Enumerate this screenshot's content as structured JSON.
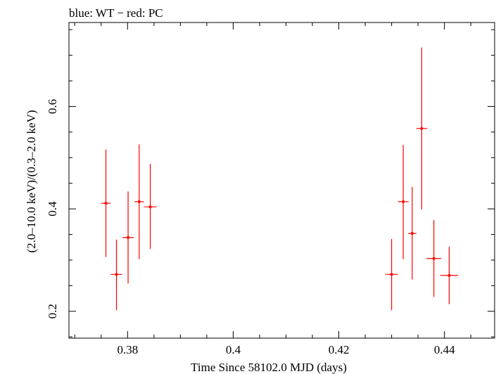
{
  "chart_data": {
    "type": "scatter",
    "title": "blue: WT − red: PC",
    "xlabel": "Time Since 58102.0 MJD (days)",
    "ylabel": "(2.0–10.0 keV)/(0.3–2.0 keV)",
    "xlim": [
      0.3689,
      0.4495
    ],
    "ylim": [
      0.1475,
      0.764
    ],
    "x_ticks": [
      0.38,
      0.4,
      0.42,
      0.44
    ],
    "x_tick_labels": [
      "0.38",
      "0.4",
      "0.42",
      "0.44"
    ],
    "y_ticks": [
      0.2,
      0.4,
      0.6
    ],
    "y_tick_labels": [
      "0.2",
      "0.4",
      "0.6"
    ],
    "grid": false,
    "series": [
      {
        "color": "#ff0000",
        "points": [
          {
            "x": 0.3759,
            "xerr": 0.0009,
            "y": 0.411,
            "yerr_low": 0.105,
            "yerr_high": 0.105
          },
          {
            "x": 0.3779,
            "xerr": 0.0011,
            "y": 0.272,
            "yerr_low": 0.07,
            "yerr_high": 0.068
          },
          {
            "x": 0.3801,
            "xerr": 0.0011,
            "y": 0.344,
            "yerr_low": 0.09,
            "yerr_high": 0.09
          },
          {
            "x": 0.3822,
            "xerr": 0.0009,
            "y": 0.414,
            "yerr_low": 0.112,
            "yerr_high": 0.112
          },
          {
            "x": 0.3843,
            "xerr": 0.0012,
            "y": 0.404,
            "yerr_low": 0.082,
            "yerr_high": 0.084
          },
          {
            "x": 0.43,
            "xerr": 0.0012,
            "y": 0.272,
            "yerr_low": 0.07,
            "yerr_high": 0.069
          },
          {
            "x": 0.4322,
            "xerr": 0.001,
            "y": 0.414,
            "yerr_low": 0.112,
            "yerr_high": 0.111
          },
          {
            "x": 0.4339,
            "xerr": 0.0008,
            "y": 0.352,
            "yerr_low": 0.09,
            "yerr_high": 0.091
          },
          {
            "x": 0.4357,
            "xerr": 0.001,
            "y": 0.557,
            "yerr_low": 0.158,
            "yerr_high": 0.158
          },
          {
            "x": 0.438,
            "xerr": 0.0014,
            "y": 0.303,
            "yerr_low": 0.075,
            "yerr_high": 0.075
          },
          {
            "x": 0.4409,
            "xerr": 0.0017,
            "y": 0.27,
            "yerr_low": 0.056,
            "yerr_high": 0.056
          }
        ]
      }
    ]
  }
}
